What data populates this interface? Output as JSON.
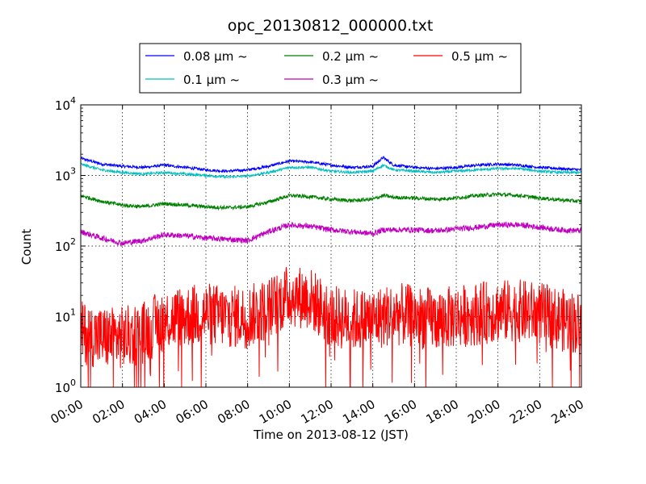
{
  "chart_data": {
    "type": "line",
    "title": "opc_20130812_000000.txt",
    "xlabel": "Time on 2013-08-12 (JST)",
    "ylabel": "Count",
    "xscale": "linear",
    "yscale": "log",
    "xlim": [
      "00:00",
      "24:00"
    ],
    "ylim": [
      1,
      10000
    ],
    "grid": true,
    "legend_position": "top-center",
    "x_ticks": [
      "00:00",
      "02:00",
      "04:00",
      "06:00",
      "08:00",
      "10:00",
      "12:00",
      "14:00",
      "16:00",
      "18:00",
      "20:00",
      "22:00",
      "24:00"
    ],
    "y_ticks": [
      {
        "value": 1,
        "base": "10",
        "exp": "0"
      },
      {
        "value": 10,
        "base": "10",
        "exp": "1"
      },
      {
        "value": 100,
        "base": "10",
        "exp": "2"
      },
      {
        "value": 1000,
        "base": "10",
        "exp": "3"
      },
      {
        "value": 10000,
        "base": "10",
        "exp": "4"
      }
    ],
    "x": [
      "00:00",
      "01:00",
      "02:00",
      "03:00",
      "04:00",
      "05:00",
      "06:00",
      "07:00",
      "08:00",
      "09:00",
      "10:00",
      "11:00",
      "12:00",
      "13:00",
      "14:00",
      "14:30",
      "15:00",
      "16:00",
      "17:00",
      "18:00",
      "19:00",
      "20:00",
      "21:00",
      "22:00",
      "23:00",
      "24:00"
    ],
    "series": [
      {
        "name": "0.08 μm ~",
        "color": "#0000ff",
        "values": [
          1750,
          1450,
          1350,
          1300,
          1400,
          1300,
          1200,
          1150,
          1200,
          1350,
          1600,
          1550,
          1400,
          1300,
          1350,
          1800,
          1400,
          1300,
          1250,
          1300,
          1400,
          1450,
          1400,
          1300,
          1250,
          1200
        ]
      },
      {
        "name": "0.1 μm ~",
        "color": "#00bfbf",
        "values": [
          1450,
          1200,
          1100,
          1050,
          1100,
          1050,
          1000,
          950,
          980,
          1100,
          1300,
          1300,
          1150,
          1100,
          1150,
          1400,
          1200,
          1150,
          1100,
          1150,
          1200,
          1250,
          1250,
          1150,
          1100,
          1100
        ]
      },
      {
        "name": "0.2 μm ~",
        "color": "#008000",
        "values": [
          520,
          430,
          380,
          360,
          400,
          380,
          360,
          350,
          360,
          420,
          520,
          500,
          460,
          440,
          460,
          520,
          490,
          480,
          460,
          480,
          520,
          540,
          520,
          480,
          450,
          430
        ]
      },
      {
        "name": "0.3 μm ~",
        "color": "#bf00bf",
        "values": [
          160,
          130,
          110,
          120,
          145,
          140,
          130,
          125,
          120,
          160,
          200,
          190,
          170,
          160,
          150,
          170,
          170,
          170,
          165,
          175,
          185,
          200,
          200,
          185,
          170,
          165
        ]
      },
      {
        "name": "0.5 μm ~",
        "color": "#ff0000",
        "values": [
          6,
          5,
          5,
          6,
          9,
          10,
          11,
          10,
          10,
          13,
          20,
          18,
          10,
          9,
          9,
          10,
          11,
          10,
          9,
          10,
          11,
          12,
          12,
          11,
          9,
          8
        ]
      }
    ]
  }
}
